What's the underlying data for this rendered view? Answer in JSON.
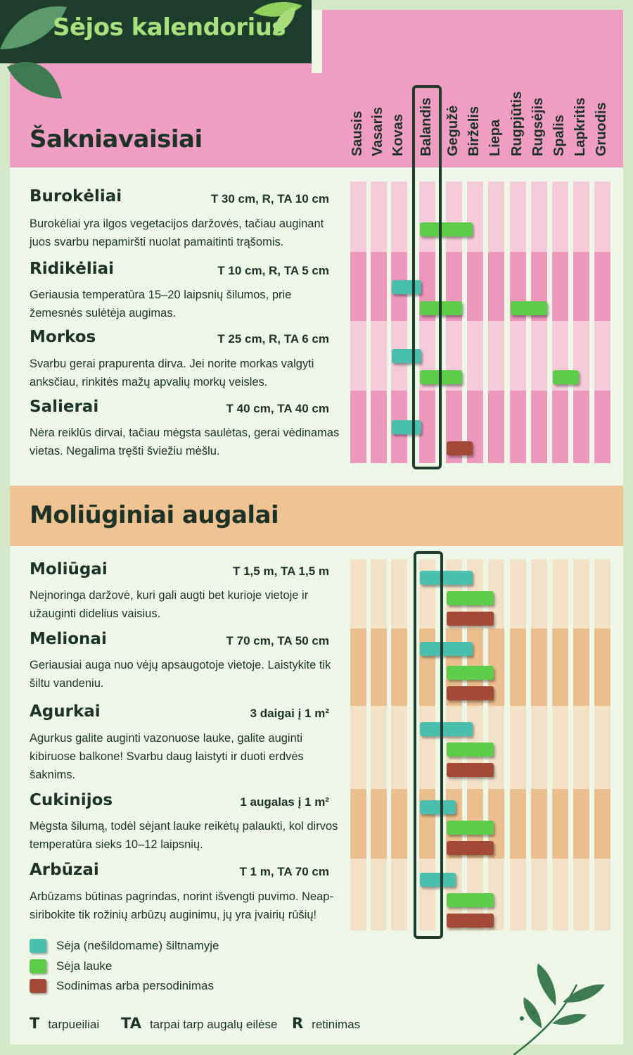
{
  "header": {
    "title": "Sėjos kalendorius"
  },
  "months": [
    "Sausis",
    "Vasaris",
    "Kovas",
    "Balandis",
    "Gegužė",
    "Birželis",
    "Liepa",
    "Rugpjūtis",
    "Rugsėjis",
    "Spalis",
    "Lapkritis",
    "Gruodis"
  ],
  "highlight_month": "Balandis",
  "colors": {
    "greenhouse": "#4bbfae",
    "outdoor": "#5ccc4a",
    "planting": "#a24a37",
    "pink_light": "#f5cad9",
    "pink_dark": "#ee97bd",
    "peach_light": "#f2e1c7",
    "peach_dark": "#ebbf8d"
  },
  "sections": [
    {
      "title": "Šakniavaisiai",
      "plants": [
        {
          "name": "Burokėliai",
          "spec": "T 30 cm, R, TA 10 cm",
          "desc": "Burokėliai yra ilgos vegetacijos daržovės, tačiau auginant juos svarbu nepamiršti nuolat pamaitinti trąšomis.",
          "bars": [
            {
              "type": "outdoor",
              "from": 4.0,
              "to": 5.5
            }
          ]
        },
        {
          "name": "Ridikėliai",
          "spec": "T 10 cm, R, TA 5 cm",
          "desc": "Geriausia temperatūra 15–20 laipsnių šilumos, prie žemesnės sulėtėja augimas.",
          "bars": [
            {
              "type": "greenhouse",
              "from": 3.0,
              "to": 3.5
            },
            {
              "type": "outdoor",
              "from": 4.0,
              "to": 5.0
            },
            {
              "type": "outdoor",
              "from": 8.0,
              "to": 9.0
            }
          ]
        },
        {
          "name": "Morkos",
          "spec": "T 25 cm, R, TA 6 cm",
          "desc": "Svarbu gerai prapurenta dirva. Jei norite morkas valgyti anksčiau, rinkitės mažų apvalių morkų veisles.",
          "bars": [
            {
              "type": "greenhouse",
              "from": 3.0,
              "to": 3.5
            },
            {
              "type": "outdoor",
              "from": 4.0,
              "to": 5.0
            },
            {
              "type": "outdoor",
              "from": 10.0,
              "to": 10.5
            }
          ]
        },
        {
          "name": "Salierai",
          "spec": "T 40 cm, TA 40 cm",
          "desc": "Nėra reiklūs dirvai, tačiau mėgsta saulėtas, gerai vėdinamas vietas. Negalima tręšti šviežiu mėšlu.",
          "bars": [
            {
              "type": "greenhouse",
              "from": 3.0,
              "to": 3.5
            },
            {
              "type": "planting",
              "from": 5.0,
              "to": 5.5
            }
          ]
        }
      ]
    },
    {
      "title": "Moliūginiai augalai",
      "plants": [
        {
          "name": "Moliūgai",
          "spec": "T 1,5 m, TA 1,5 m",
          "desc": "Neįnoringa daržovė, kuri gali augti bet kurioje vietoje ir užauginti didelius vaisius.",
          "bars": [
            {
              "type": "greenhouse",
              "from": 4.0,
              "to": 5.5
            },
            {
              "type": "outdoor",
              "from": 5.0,
              "to": 6.5
            },
            {
              "type": "planting",
              "from": 5.0,
              "to": 6.5
            }
          ]
        },
        {
          "name": "Melionai",
          "spec": "T 70 cm, TA 50 cm",
          "desc": "Geriausiai auga nuo vėjų apsaugotoje vietoje. Laistykite tik šiltu vandeniu.",
          "bars": [
            {
              "type": "greenhouse",
              "from": 4.0,
              "to": 5.5
            },
            {
              "type": "outdoor",
              "from": 5.0,
              "to": 6.5
            },
            {
              "type": "planting",
              "from": 5.0,
              "to": 6.5
            }
          ]
        },
        {
          "name": "Agurkai",
          "spec": "3 daigai į 1 m²",
          "desc": "Agurkus galite auginti vazonuose lauke, galite auginti kibiruose balkone! Svarbu daug laistyti ir duoti erdvės šaknims.",
          "bars": [
            {
              "type": "greenhouse",
              "from": 4.0,
              "to": 5.5
            },
            {
              "type": "outdoor",
              "from": 5.0,
              "to": 6.5
            },
            {
              "type": "planting",
              "from": 5.0,
              "to": 6.5
            }
          ]
        },
        {
          "name": "Cukinijos",
          "spec": "1 augalas į 1 m²",
          "desc": "Mėgsta šilumą, todėl sėjant lauke reikėtų palaukti, kol dirvos temperatūra sieks 10–12 laipsnių.",
          "bars": [
            {
              "type": "greenhouse",
              "from": 4.0,
              "to": 4.75
            },
            {
              "type": "outdoor",
              "from": 5.0,
              "to": 6.5
            },
            {
              "type": "planting",
              "from": 5.0,
              "to": 6.5
            }
          ]
        },
        {
          "name": "Arbūzai",
          "spec": "T 1 m, TA 70 cm",
          "desc": "Arbūzams būtinas pagrindas, norint išvengti puvimo. Neap-siribokite tik rožinių arbūzų auginimu, jų yra įvairių rūšių!",
          "bars": [
            {
              "type": "greenhouse",
              "from": 4.0,
              "to": 4.75
            },
            {
              "type": "outdoor",
              "from": 5.0,
              "to": 6.5
            },
            {
              "type": "planting",
              "from": 5.0,
              "to": 6.5
            }
          ]
        }
      ]
    }
  ],
  "legend": [
    {
      "type": "greenhouse",
      "label": "Sėja (nešildomame) šiltnamyje"
    },
    {
      "type": "outdoor",
      "label": "Sėja lauke"
    },
    {
      "type": "planting",
      "label": "Sodinimas arba persodinimas"
    }
  ],
  "abbreviations": [
    {
      "key": "T",
      "text": "tarpueiliai"
    },
    {
      "key": "TA",
      "text": "tarpai tarp augalų eilėse"
    },
    {
      "key": "R",
      "text": "retinimas"
    }
  ]
}
